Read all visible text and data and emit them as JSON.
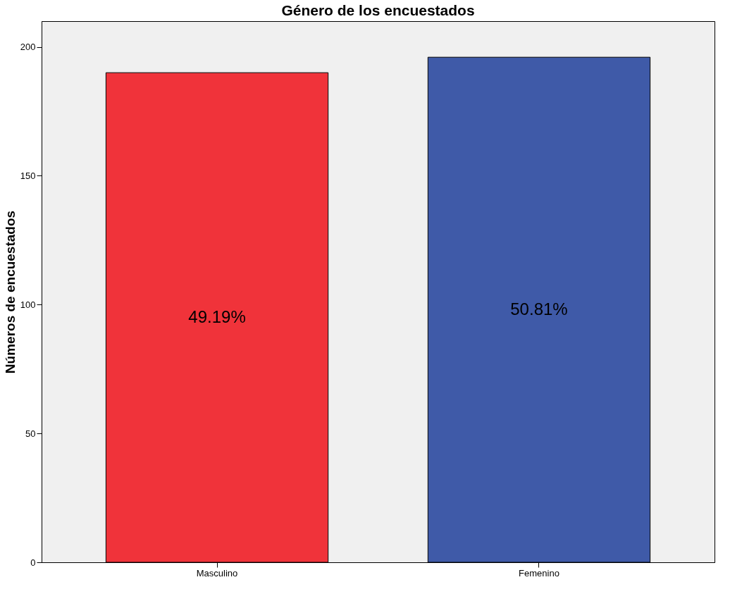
{
  "chart_data": {
    "type": "bar",
    "title": "Género de los encuestados",
    "ylabel": "Números de encuestados",
    "categories": [
      "Masculino",
      "Femenino"
    ],
    "values": [
      190,
      196
    ],
    "colors": [
      "#f0333a",
      "#3f5aa8"
    ],
    "annotations": [
      "49.19%",
      "50.81%"
    ],
    "ylim": [
      0,
      210
    ],
    "yticks": [
      0,
      50,
      100,
      150,
      200
    ],
    "grid": false
  }
}
